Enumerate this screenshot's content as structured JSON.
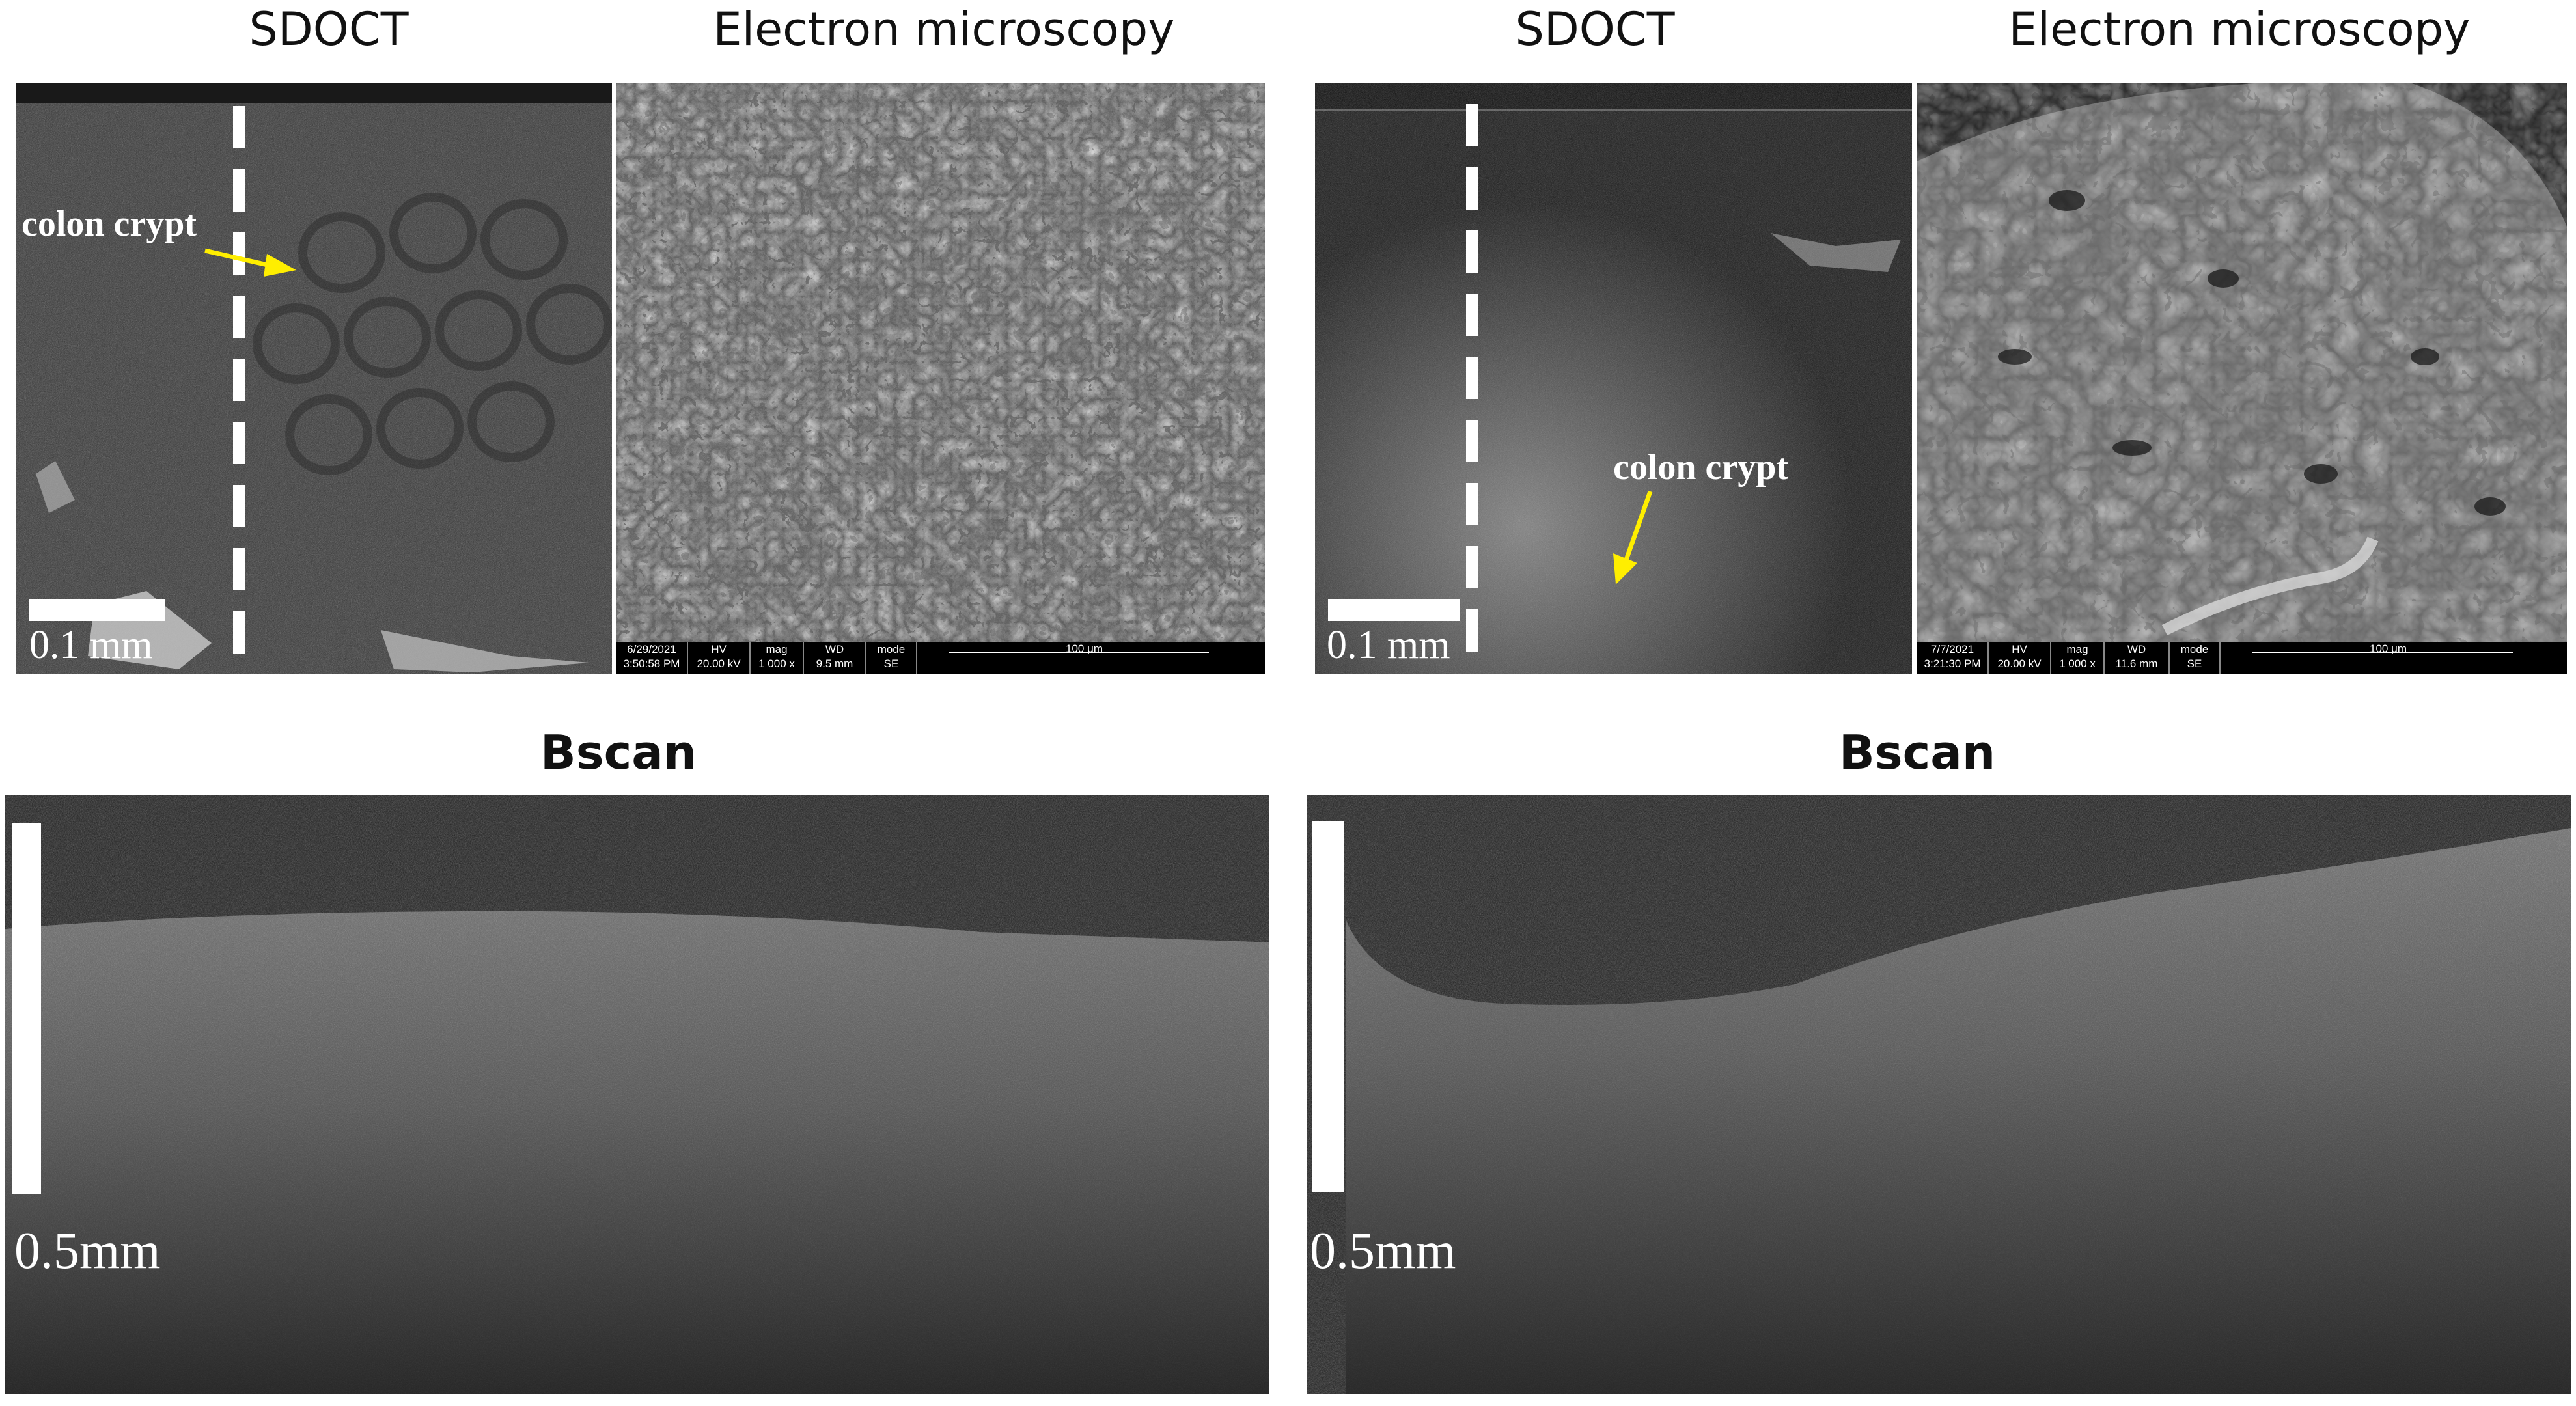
{
  "top_left": {
    "sdoct_title": "SDOCT",
    "em_title": "Electron microscopy",
    "crypt_label": "colon crypt",
    "scale_label": "0.1 mm",
    "em_databar": {
      "date": "6/29/2021",
      "time": "3:50:58 PM",
      "hv_label": "HV",
      "hv_value": "20.00 kV",
      "mag_label": "mag",
      "mag_value": "1 000 x",
      "wd_label": "WD",
      "wd_value": "9.5 mm",
      "mode_label": "mode",
      "mode_value": "SE",
      "scale_label": "100 μm"
    }
  },
  "top_right": {
    "sdoct_title": "SDOCT",
    "em_title": "Electron microscopy",
    "crypt_label": "colon crypt",
    "scale_label": "0.1 mm",
    "em_databar": {
      "date": "7/7/2021",
      "time": "3:21:30 PM",
      "hv_label": "HV",
      "hv_value": "20.00 kV",
      "mag_label": "mag",
      "mag_value": "1 000 x",
      "wd_label": "WD",
      "wd_value": "11.6 mm",
      "mode_label": "mode",
      "mode_value": "SE",
      "scale_label": "100 μm"
    }
  },
  "bottom_left": {
    "title": "Bscan",
    "scale_label": "0.5mm"
  },
  "bottom_right": {
    "title": "Bscan",
    "scale_label": "0.5mm"
  },
  "colors": {
    "arrow": "#ffee00",
    "background": "#ffffff"
  }
}
